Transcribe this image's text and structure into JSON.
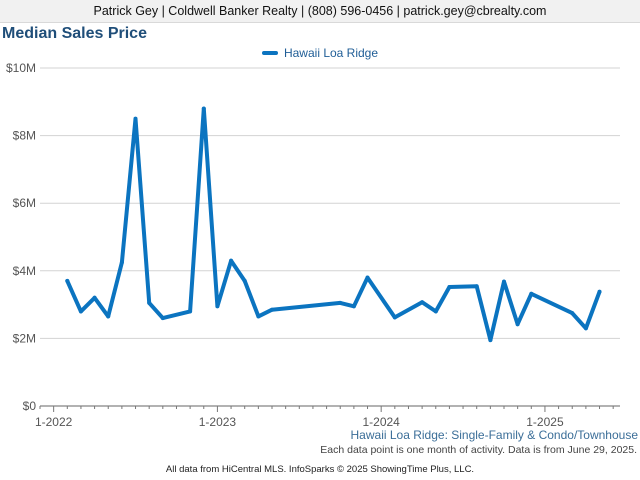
{
  "header": {
    "text": "Patrick Gey | Coldwell Banker Realty | (808) 596-0456 | patrick.gey@cbrealty.com"
  },
  "chart_data": {
    "type": "line",
    "title": "Median Sales Price",
    "subtitle": "Hawaii Loa Ridge: Single-Family & Condo/Townhouse",
    "note": "Each data point is one month of activity. Data is from June 29, 2025.",
    "footer": "All data from HiCentral MLS. InfoSparks © 2025 ShowingTime Plus, LLC.",
    "xlabel": "",
    "ylabel": "",
    "x_tick_labels": [
      "1-2022",
      "1-2023",
      "1-2024",
      "1-2025"
    ],
    "y_tick_labels": [
      "$0",
      "$2M",
      "$4M",
      "$6M",
      "$8M",
      "$10M"
    ],
    "y_ticks": [
      0,
      2000000,
      4000000,
      6000000,
      8000000,
      10000000
    ],
    "ylim": [
      0,
      10000000
    ],
    "x_range": [
      "2021-12",
      "2025-06"
    ],
    "grid": true,
    "legend_position": "top-center",
    "series": [
      {
        "name": "Hawaii Loa Ridge",
        "color": "#0b74c0",
        "points": [
          {
            "x": "2022-02",
            "y": 3700000
          },
          {
            "x": "2022-03",
            "y": 2800000
          },
          {
            "x": "2022-04",
            "y": 3200000
          },
          {
            "x": "2022-05",
            "y": 2650000
          },
          {
            "x": "2022-06",
            "y": 4250000
          },
          {
            "x": "2022-07",
            "y": 8500000
          },
          {
            "x": "2022-08",
            "y": 3050000
          },
          {
            "x": "2022-09",
            "y": 2600000
          },
          {
            "x": "2022-11",
            "y": 2800000
          },
          {
            "x": "2022-12",
            "y": 8800000
          },
          {
            "x": "2023-01",
            "y": 2950000
          },
          {
            "x": "2023-02",
            "y": 4300000
          },
          {
            "x": "2023-03",
            "y": 3700000
          },
          {
            "x": "2023-04",
            "y": 2650000
          },
          {
            "x": "2023-05",
            "y": 2850000
          },
          {
            "x": "2023-10",
            "y": 3050000
          },
          {
            "x": "2023-11",
            "y": 2950000
          },
          {
            "x": "2023-12",
            "y": 3800000
          },
          {
            "x": "2024-02",
            "y": 2620000
          },
          {
            "x": "2024-04",
            "y": 3070000
          },
          {
            "x": "2024-05",
            "y": 2800000
          },
          {
            "x": "2024-06",
            "y": 3520000
          },
          {
            "x": "2024-08",
            "y": 3540000
          },
          {
            "x": "2024-09",
            "y": 1950000
          },
          {
            "x": "2024-10",
            "y": 3680000
          },
          {
            "x": "2024-11",
            "y": 2420000
          },
          {
            "x": "2024-12",
            "y": 3320000
          },
          {
            "x": "2025-03",
            "y": 2750000
          },
          {
            "x": "2025-04",
            "y": 2300000
          },
          {
            "x": "2025-05",
            "y": 3380000
          }
        ]
      }
    ]
  }
}
